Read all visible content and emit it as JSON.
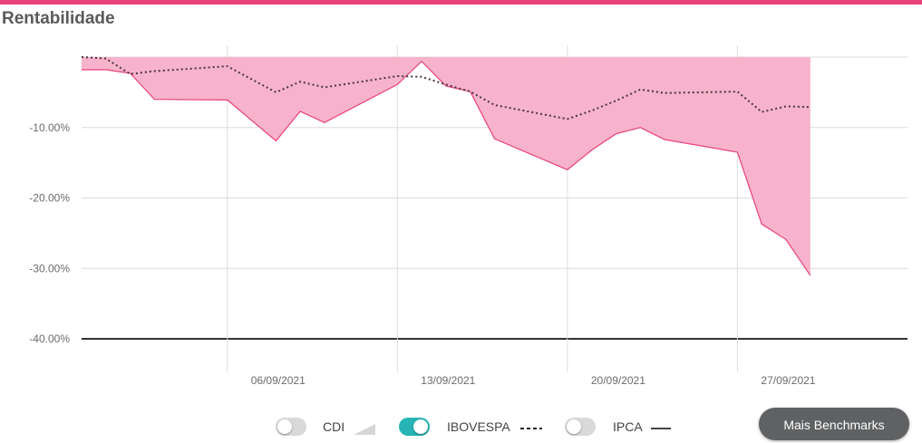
{
  "page": {
    "title": "Rentabilidade"
  },
  "colors": {
    "accent": "#e8427c",
    "area_fill": "#f7b3cb",
    "area_line": "#e8427c",
    "benchmark_line": "#4a3440",
    "toggle_on": "#27b4b4"
  },
  "legend": {
    "items": [
      {
        "label": "CDI",
        "enabled": false,
        "icon": "area-swatch-icon"
      },
      {
        "label": "IBOVESPA",
        "enabled": true,
        "icon": "dashed-line-icon"
      },
      {
        "label": "IPCA",
        "enabled": false,
        "icon": "solid-line-icon"
      }
    ]
  },
  "actions": {
    "more_benchmarks_label": "Mais Benchmarks"
  },
  "chart_data": {
    "type": "area",
    "title": "Rentabilidade",
    "xlabel": "",
    "ylabel": "",
    "x_range": [
      "2021-08-31",
      "2021-10-04"
    ],
    "ylim": [
      -40,
      0
    ],
    "grid": true,
    "ytick_labels": [
      "-10.00%",
      "-20.00%",
      "-30.00%",
      "-40.00%"
    ],
    "ytick_values": [
      -10,
      -20,
      -30,
      -40
    ],
    "xtick_labels": [
      "06/09/2021",
      "13/09/2021",
      "20/09/2021",
      "27/09/2021"
    ],
    "xtick_dates": [
      "2021-09-06",
      "2021-09-13",
      "2021-09-20",
      "2021-09-27"
    ],
    "series": [
      {
        "type": "area",
        "x": [
          "2021-08-31",
          "2021-09-01",
          "2021-09-02",
          "2021-09-03",
          "2021-09-06",
          "2021-09-08",
          "2021-09-09",
          "2021-09-10",
          "2021-09-13",
          "2021-09-14",
          "2021-09-15",
          "2021-09-16",
          "2021-09-17",
          "2021-09-20",
          "2021-09-21",
          "2021-09-22",
          "2021-09-23",
          "2021-09-24",
          "2021-09-27",
          "2021-09-28",
          "2021-09-29",
          "2021-09-30"
        ],
        "values": [
          -1.8,
          -1.8,
          -2.3,
          -6.0,
          -6.1,
          -11.9,
          -7.7,
          -9.3,
          -3.9,
          -0.6,
          -4.1,
          -4.9,
          -11.6,
          -16.0,
          -13.2,
          -10.9,
          -10.0,
          -11.7,
          -13.5,
          -23.7,
          -25.9,
          -31.0
        ]
      },
      {
        "name": "IBOVESPA",
        "type": "line",
        "style": "dotted",
        "x": [
          "2021-08-31",
          "2021-09-01",
          "2021-09-02",
          "2021-09-03",
          "2021-09-06",
          "2021-09-08",
          "2021-09-09",
          "2021-09-10",
          "2021-09-13",
          "2021-09-14",
          "2021-09-15",
          "2021-09-16",
          "2021-09-17",
          "2021-09-20",
          "2021-09-21",
          "2021-09-22",
          "2021-09-23",
          "2021-09-24",
          "2021-09-27",
          "2021-09-28",
          "2021-09-29",
          "2021-09-30"
        ],
        "values": [
          0.0,
          -0.2,
          -2.4,
          -2.0,
          -1.3,
          -5.0,
          -3.5,
          -4.3,
          -2.7,
          -2.8,
          -3.9,
          -4.9,
          -6.8,
          -8.8,
          -7.6,
          -6.2,
          -4.6,
          -5.1,
          -4.9,
          -7.8,
          -7.0,
          -7.1
        ]
      }
    ]
  }
}
